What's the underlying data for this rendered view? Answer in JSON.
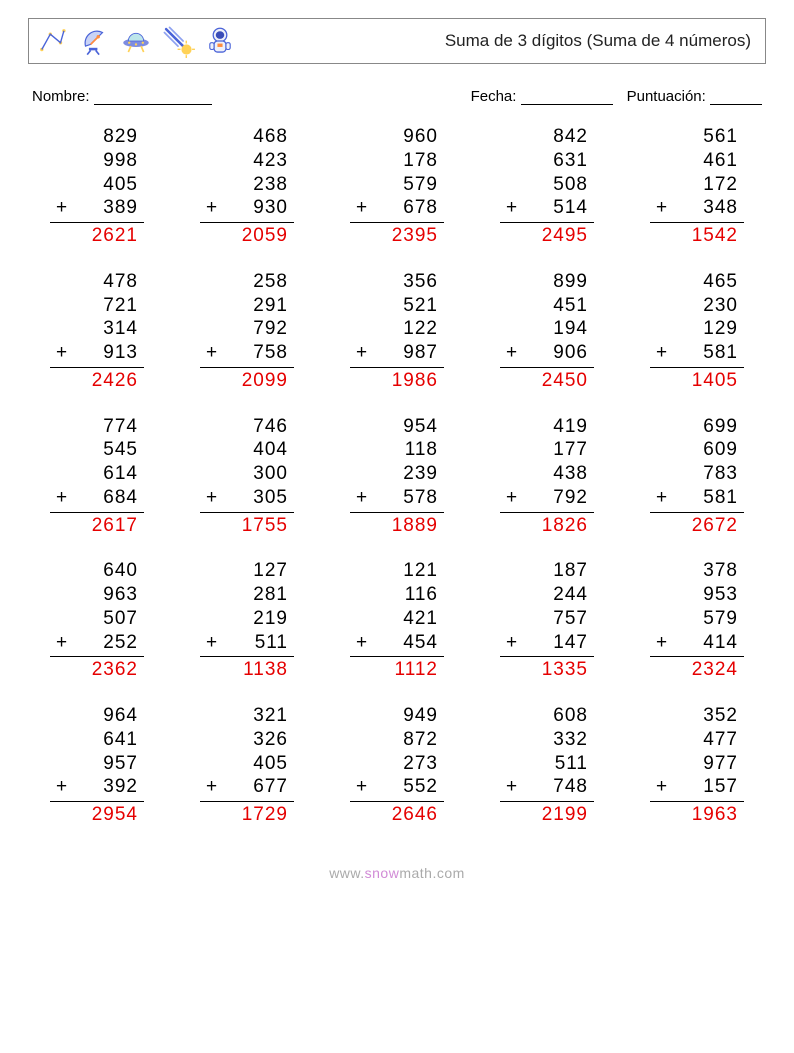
{
  "header": {
    "title": "Suma de 3 dígitos (Suma de 4 números)",
    "icons": [
      "constellation-icon",
      "satellite-dish-icon",
      "ufo-icon",
      "comet-icon",
      "astronaut-icon"
    ]
  },
  "meta": {
    "name_label": "Nombre:",
    "date_label": "Fecha:",
    "score_label": "Puntuación:"
  },
  "style": {
    "text_color": "#000000",
    "answer_color": "#e50000",
    "border_color": "#888888",
    "rule_color": "#000000",
    "footer_color": "#aaaaaa",
    "footer_accent": "#d18bd6",
    "background": "#ffffff",
    "font_size_problem": 19,
    "font_size_title": 17,
    "font_size_meta": 15,
    "font_size_footer": 14,
    "columns": 5,
    "rows": 5,
    "operator": "+",
    "blank_widths": {
      "name": 118,
      "date": 92,
      "score": 52
    }
  },
  "problems": [
    {
      "a": 829,
      "b": 998,
      "c": 405,
      "d": 389,
      "ans": 2621
    },
    {
      "a": 468,
      "b": 423,
      "c": 238,
      "d": 930,
      "ans": 2059
    },
    {
      "a": 960,
      "b": 178,
      "c": 579,
      "d": 678,
      "ans": 2395
    },
    {
      "a": 842,
      "b": 631,
      "c": 508,
      "d": 514,
      "ans": 2495
    },
    {
      "a": 561,
      "b": 461,
      "c": 172,
      "d": 348,
      "ans": 1542
    },
    {
      "a": 478,
      "b": 721,
      "c": 314,
      "d": 913,
      "ans": 2426
    },
    {
      "a": 258,
      "b": 291,
      "c": 792,
      "d": 758,
      "ans": 2099
    },
    {
      "a": 356,
      "b": 521,
      "c": 122,
      "d": 987,
      "ans": 1986
    },
    {
      "a": 899,
      "b": 451,
      "c": 194,
      "d": 906,
      "ans": 2450
    },
    {
      "a": 465,
      "b": 230,
      "c": 129,
      "d": 581,
      "ans": 1405
    },
    {
      "a": 774,
      "b": 545,
      "c": 614,
      "d": 684,
      "ans": 2617
    },
    {
      "a": 746,
      "b": 404,
      "c": 300,
      "d": 305,
      "ans": 1755
    },
    {
      "a": 954,
      "b": 118,
      "c": 239,
      "d": 578,
      "ans": 1889
    },
    {
      "a": 419,
      "b": 177,
      "c": 438,
      "d": 792,
      "ans": 1826
    },
    {
      "a": 699,
      "b": 609,
      "c": 783,
      "d": 581,
      "ans": 2672
    },
    {
      "a": 640,
      "b": 963,
      "c": 507,
      "d": 252,
      "ans": 2362
    },
    {
      "a": 127,
      "b": 281,
      "c": 219,
      "d": 511,
      "ans": 1138
    },
    {
      "a": 121,
      "b": 116,
      "c": 421,
      "d": 454,
      "ans": 1112
    },
    {
      "a": 187,
      "b": 244,
      "c": 757,
      "d": 147,
      "ans": 1335
    },
    {
      "a": 378,
      "b": 953,
      "c": 579,
      "d": 414,
      "ans": 2324
    },
    {
      "a": 964,
      "b": 641,
      "c": 957,
      "d": 392,
      "ans": 2954
    },
    {
      "a": 321,
      "b": 326,
      "c": 405,
      "d": 677,
      "ans": 1729
    },
    {
      "a": 949,
      "b": 872,
      "c": 273,
      "d": 552,
      "ans": 2646
    },
    {
      "a": 608,
      "b": 332,
      "c": 511,
      "d": 748,
      "ans": 2199
    },
    {
      "a": 352,
      "b": 477,
      "c": 977,
      "d": 157,
      "ans": 1963
    }
  ],
  "footer": {
    "prefix": "www.",
    "accent": "snow",
    "suffix": "math.com"
  }
}
